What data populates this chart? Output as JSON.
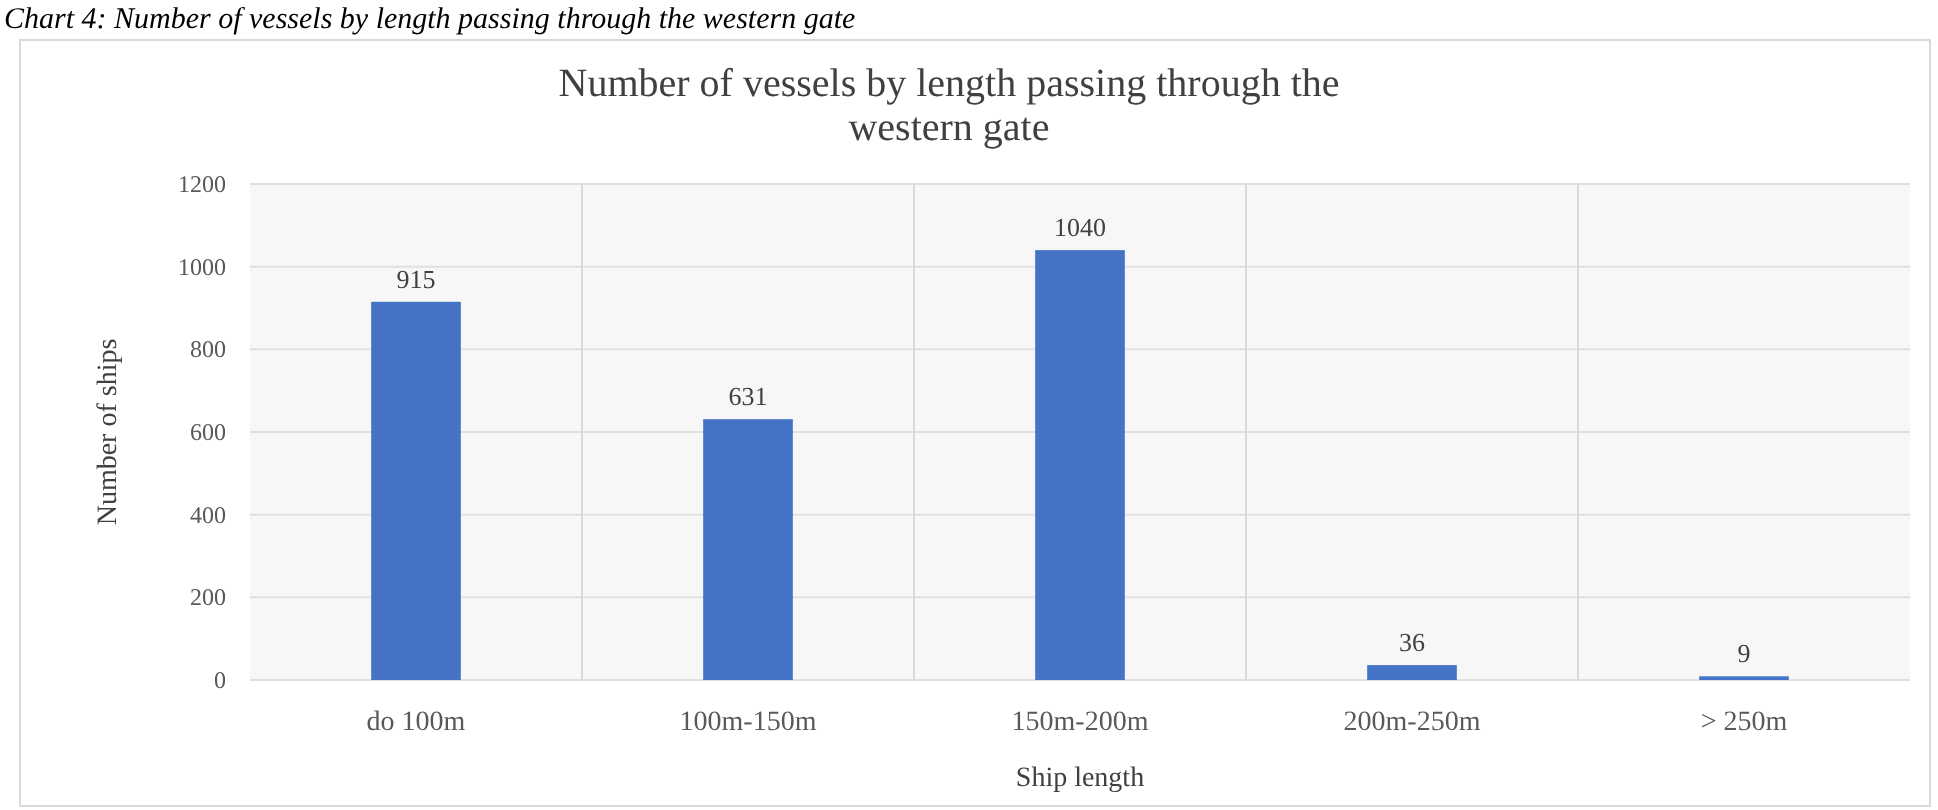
{
  "chart_data": {
    "type": "bar",
    "title": "Number of vessels by length passing through the western gate",
    "xlabel": "Ship length",
    "ylabel": "Number of ships",
    "annotations": [
      "Chart 4: Number of vessels by length passing through the western gate"
    ],
    "categories": [
      "do 100m",
      "100m-150m",
      "150m-200m",
      "200m-250m",
      "> 250m"
    ],
    "values": [
      915,
      631,
      1040,
      36,
      9
    ],
    "color": "#4472c4",
    "ylim": [
      0,
      1200
    ],
    "yticks": [
      0,
      200,
      400,
      600,
      800,
      1000,
      1200
    ],
    "grid": true,
    "data_labels": true
  }
}
